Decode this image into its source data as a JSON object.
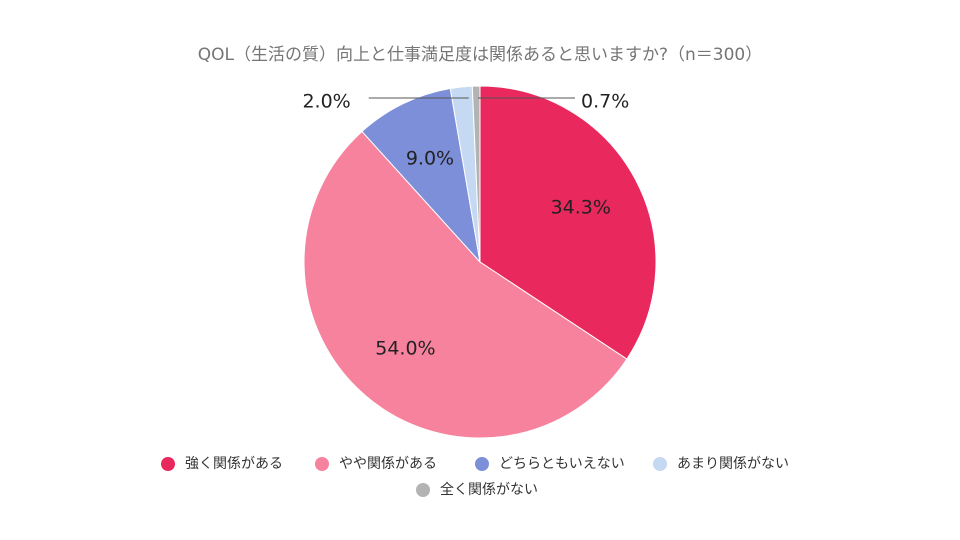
{
  "chart_data": {
    "type": "pie",
    "title": "QOL（生活の質）向上と仕事満足度は関係あると思いますか?（n＝300）",
    "categories": [
      "強く関係がある",
      "やや関係がある",
      "どちらともいえない",
      "あまり関係がない",
      "全く関係がない"
    ],
    "values": [
      34.3,
      54.0,
      9.0,
      2.0,
      0.7
    ],
    "value_labels": [
      "34.3%",
      "54.0%",
      "9.0%",
      "2.0%",
      "0.7%"
    ],
    "colors": [
      "#e9285d",
      "#f7829e",
      "#7d8fd9",
      "#c6d9f3",
      "#b3b3b3"
    ]
  }
}
